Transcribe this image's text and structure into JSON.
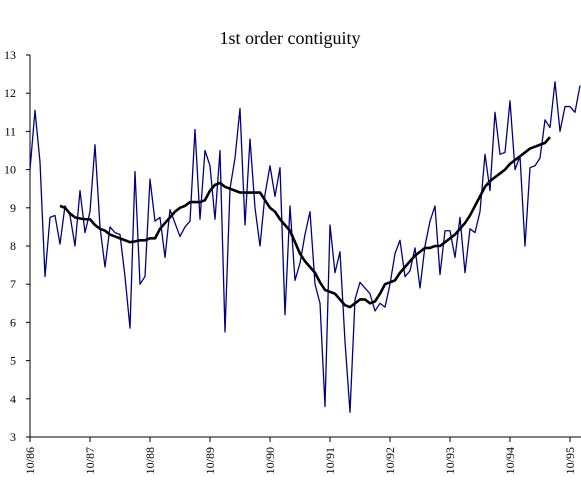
{
  "chart_data": {
    "type": "line",
    "title": "1st order contiguity",
    "categories": [
      "10/86",
      null,
      null,
      null,
      null,
      null,
      null,
      null,
      null,
      null,
      null,
      null,
      "10/87",
      null,
      null,
      null,
      null,
      null,
      null,
      null,
      null,
      null,
      null,
      null,
      "10/88",
      null,
      null,
      null,
      null,
      null,
      null,
      null,
      null,
      null,
      null,
      null,
      "10/89",
      null,
      null,
      null,
      null,
      null,
      null,
      null,
      null,
      null,
      null,
      null,
      "10/90",
      null,
      null,
      null,
      null,
      null,
      null,
      null,
      null,
      null,
      null,
      null,
      "10/91",
      null,
      null,
      null,
      null,
      null,
      null,
      null,
      null,
      null,
      null,
      null,
      "10/92",
      null,
      null,
      null,
      null,
      null,
      null,
      null,
      null,
      null,
      null,
      null,
      "10/93",
      null,
      null,
      null,
      null,
      null,
      null,
      null,
      null,
      null,
      null,
      null,
      "10/94",
      null,
      null,
      null,
      null,
      null,
      null,
      null,
      null,
      null,
      null,
      null,
      "10/95",
      null,
      null
    ],
    "series": [
      {
        "color": "#000080",
        "line_width": 1.3,
        "values": [
          10.0,
          11.55,
          10.2,
          7.2,
          8.75,
          8.8,
          8.05,
          9.05,
          8.8,
          8.0,
          9.45,
          8.35,
          8.9,
          10.65,
          8.5,
          7.45,
          8.5,
          8.35,
          8.3,
          7.2,
          5.85,
          9.95,
          7.0,
          7.2,
          9.75,
          8.65,
          8.75,
          7.7,
          8.95,
          8.6,
          8.25,
          8.5,
          8.65,
          11.05,
          8.7,
          10.5,
          10.1,
          8.7,
          10.5,
          5.75,
          9.5,
          10.3,
          11.6,
          8.55,
          10.8,
          9.0,
          8.0,
          9.35,
          10.1,
          9.3,
          10.05,
          6.2,
          9.05,
          7.1,
          7.55,
          8.3,
          8.9,
          7.0,
          6.5,
          3.8,
          8.55,
          7.3,
          7.85,
          5.5,
          3.65,
          6.6,
          7.05,
          6.9,
          6.75,
          6.3,
          6.5,
          6.4,
          7.0,
          7.8,
          8.15,
          7.2,
          7.35,
          7.95,
          6.9,
          8.0,
          8.65,
          9.05,
          7.25,
          8.4,
          8.4,
          7.7,
          8.75,
          7.3,
          8.45,
          8.35,
          8.9,
          10.4,
          9.45,
          11.5,
          10.4,
          10.45,
          11.8,
          10.0,
          10.35,
          8.0,
          10.05,
          10.1,
          10.3,
          11.3,
          11.1,
          12.3,
          11.0,
          11.65,
          11.65,
          11.5,
          12.2
        ]
      },
      {
        "color": "#000000",
        "line_width": 2.6,
        "values": [
          null,
          null,
          null,
          null,
          null,
          null,
          9.05,
          9.0,
          8.85,
          8.75,
          8.72,
          8.7,
          8.7,
          8.55,
          8.45,
          8.4,
          8.3,
          8.25,
          8.2,
          8.15,
          8.1,
          8.12,
          8.15,
          8.15,
          8.2,
          8.2,
          8.45,
          8.6,
          8.75,
          8.9,
          9.0,
          9.05,
          9.15,
          9.15,
          9.15,
          9.2,
          9.45,
          9.6,
          9.65,
          9.55,
          9.5,
          9.45,
          9.4,
          9.4,
          9.4,
          9.4,
          9.4,
          9.2,
          9.0,
          8.9,
          8.7,
          8.55,
          8.4,
          8.1,
          7.8,
          7.6,
          7.45,
          7.3,
          7.05,
          6.85,
          6.8,
          6.75,
          6.6,
          6.45,
          6.4,
          6.5,
          6.6,
          6.6,
          6.5,
          6.55,
          6.75,
          7.0,
          7.05,
          7.1,
          7.3,
          7.45,
          7.6,
          7.75,
          7.85,
          7.95,
          7.95,
          8.0,
          8.0,
          8.1,
          8.2,
          8.3,
          8.45,
          8.6,
          8.8,
          9.05,
          9.3,
          9.55,
          9.7,
          9.8,
          9.9,
          10.0,
          10.15,
          10.25,
          10.35,
          10.45,
          10.55,
          10.6,
          10.65,
          10.7,
          10.85,
          null,
          null,
          null,
          null,
          null,
          null
        ]
      }
    ],
    "ylim": [
      3,
      13
    ],
    "yticks": [
      3,
      4,
      5,
      6,
      7,
      8,
      9,
      10,
      11,
      12,
      13
    ]
  }
}
